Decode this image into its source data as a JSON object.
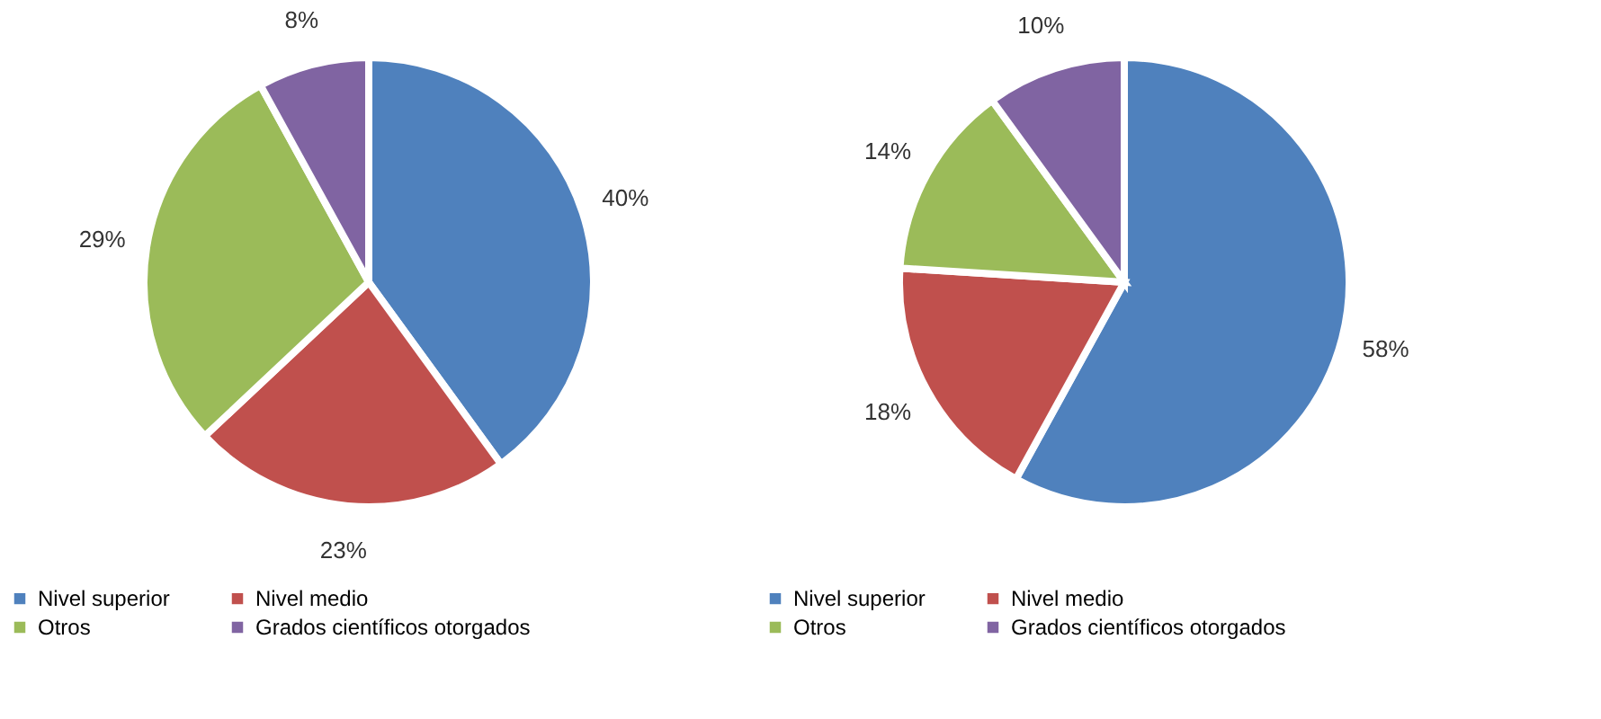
{
  "chart_data": [
    {
      "type": "pie",
      "categories": [
        "Nivel superior",
        "Nivel medio",
        "Otros",
        "Grados científicos otorgados"
      ],
      "values": [
        40,
        23,
        29,
        8
      ],
      "colors": [
        "#4f81bd",
        "#c0504d",
        "#9bbb59",
        "#8064a2"
      ],
      "value_labels": [
        "40%",
        "23%",
        "29%",
        "8%"
      ],
      "legend": "bottom"
    },
    {
      "type": "pie",
      "categories": [
        "Nivel superior",
        "Nivel medio",
        "Otros",
        "Grados científicos otorgados"
      ],
      "values": [
        58,
        18,
        14,
        10
      ],
      "colors": [
        "#4f81bd",
        "#c0504d",
        "#9bbb59",
        "#8064a2"
      ],
      "value_labels": [
        "58%",
        "18%",
        "14%",
        "10%"
      ],
      "legend": "bottom"
    }
  ]
}
